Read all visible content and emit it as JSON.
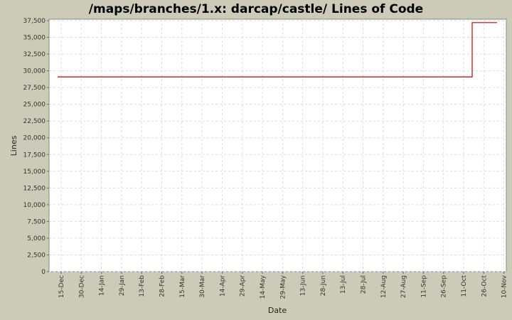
{
  "chart_data": {
    "type": "line",
    "title": "/maps/branches/1.x: darcap/castle/ Lines of Code",
    "xlabel": "Date",
    "ylabel": "Lines",
    "ylim": [
      0,
      37500
    ],
    "grid": true,
    "legend": null,
    "y_ticks": [
      "0",
      "2,500",
      "5,000",
      "7,500",
      "10,000",
      "12,500",
      "15,000",
      "17,500",
      "20,000",
      "22,500",
      "25,000",
      "27,500",
      "30,000",
      "32,500",
      "35,000",
      "37,500"
    ],
    "x_ticks": [
      "15-Dec",
      "30-Dec",
      "14-Jan",
      "29-Jan",
      "13-Feb",
      "28-Feb",
      "15-Mar",
      "30-Mar",
      "14-Apr",
      "29-Apr",
      "14-May",
      "29-May",
      "13-Jun",
      "28-Jun",
      "13-Jul",
      "28-Jul",
      "12-Aug",
      "27-Aug",
      "11-Sep",
      "26-Sep",
      "11-Oct",
      "26-Oct",
      "10-Nov"
    ],
    "series": [
      {
        "name": "Lines of Code",
        "color": "#cc0000",
        "step": true,
        "points": [
          {
            "x": "11-Dec",
            "y": 29100
          },
          {
            "x": "17-Oct",
            "y": 29100
          },
          {
            "x": "17-Oct",
            "y": 37200
          },
          {
            "x": "31-Oct",
            "y": 37200
          }
        ]
      }
    ]
  },
  "colors": {
    "background": "#cccbb7",
    "plot_background": "#ffffff",
    "grid": "#d8d8d8",
    "line": "#cc0000"
  }
}
